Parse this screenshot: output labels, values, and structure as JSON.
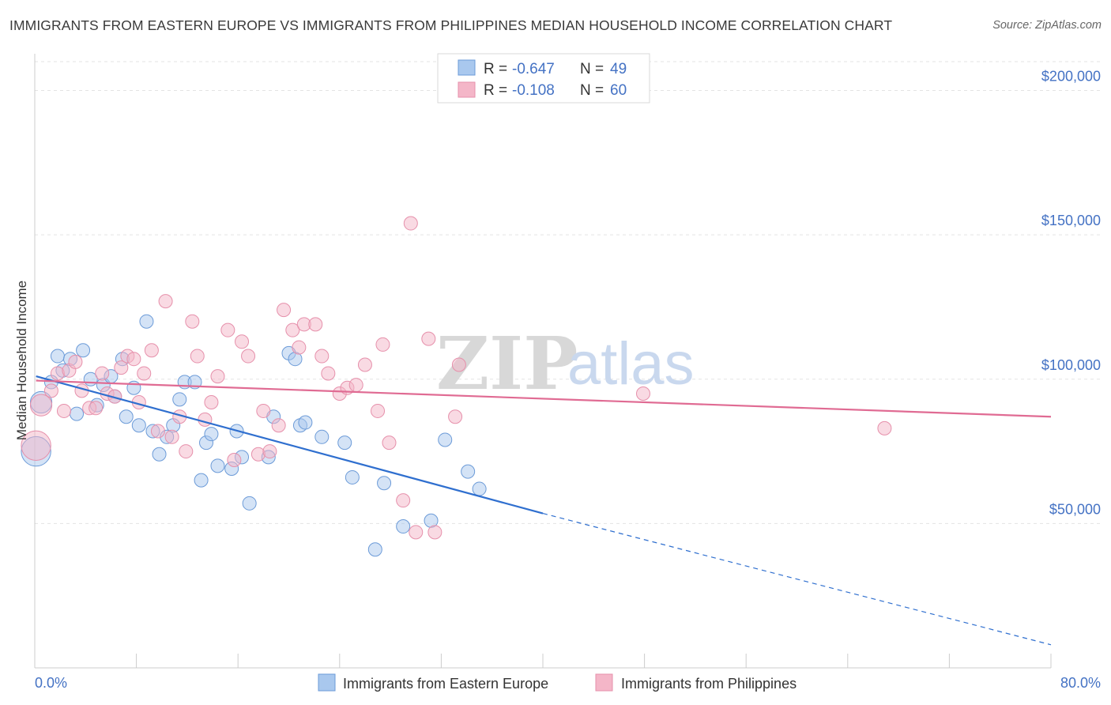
{
  "title": "IMMIGRANTS FROM EASTERN EUROPE VS IMMIGRANTS FROM PHILIPPINES MEDIAN HOUSEHOLD INCOME CORRELATION CHART",
  "source": "Source: ZipAtlas.com",
  "watermark": {
    "zip": "ZIP",
    "atlas": "atlas"
  },
  "legend": {
    "rows": [
      {
        "r_label": "R =",
        "r_value": "-0.647",
        "n_label": "N =",
        "n_value": "49",
        "color": "#a9c8ee"
      },
      {
        "r_label": "R =",
        "r_value": "-0.108",
        "n_label": "N =",
        "n_value": "60",
        "color": "#f4b6c8"
      }
    ]
  },
  "bottom_legend": [
    {
      "label": "Immigrants from Eastern Europe",
      "color": "#a9c8ee"
    },
    {
      "label": "Immigrants from Philippines",
      "color": "#f4b6c8"
    }
  ],
  "chart_data": {
    "type": "scatter",
    "ylabel": "Median Household Income",
    "xlim": [
      0,
      80
    ],
    "ylim": [
      0,
      210000
    ],
    "x_tick_labels": [
      "0.0%",
      "80.0%"
    ],
    "y_ticks": [
      50000,
      100000,
      150000,
      200000
    ],
    "y_tick_labels": [
      "$50,000",
      "$100,000",
      "$150,000",
      "$200,000"
    ],
    "grid": true,
    "series": [
      {
        "name": "Immigrants from Eastern Europe",
        "color": "#a9c8ee",
        "stroke": "#6c9bd8",
        "line_color": "#2f6fcf",
        "trend": {
          "x0": 0.1,
          "y0": 101000,
          "x1": 40,
          "y1": 53500,
          "x_dash_end": 80,
          "y_dash_end": 8000
        },
        "points": [
          [
            0.1,
            75000,
            2.2
          ],
          [
            0.5,
            92000,
            1.6
          ],
          [
            1.3,
            99000,
            1
          ],
          [
            1.8,
            108000,
            1
          ],
          [
            2.2,
            103000,
            1
          ],
          [
            2.8,
            107000,
            1
          ],
          [
            3.3,
            88000,
            1
          ],
          [
            3.8,
            110000,
            1
          ],
          [
            4.4,
            100000,
            1
          ],
          [
            4.9,
            91000,
            1
          ],
          [
            5.4,
            98000,
            1
          ],
          [
            6.0,
            101000,
            1
          ],
          [
            6.3,
            94000,
            1
          ],
          [
            6.9,
            107000,
            1
          ],
          [
            7.2,
            87000,
            1
          ],
          [
            7.8,
            97000,
            1
          ],
          [
            8.2,
            84000,
            1
          ],
          [
            8.8,
            120000,
            1
          ],
          [
            9.3,
            82000,
            1
          ],
          [
            9.8,
            74000,
            1
          ],
          [
            10.4,
            80000,
            1
          ],
          [
            10.9,
            84000,
            1
          ],
          [
            11.4,
            93000,
            1
          ],
          [
            11.8,
            99000,
            1
          ],
          [
            12.6,
            99000,
            1
          ],
          [
            13.1,
            65000,
            1
          ],
          [
            13.5,
            78000,
            1
          ],
          [
            13.9,
            81000,
            1
          ],
          [
            14.4,
            70000,
            1
          ],
          [
            15.5,
            69000,
            1
          ],
          [
            15.9,
            82000,
            1
          ],
          [
            16.3,
            73000,
            1
          ],
          [
            16.9,
            57000,
            1
          ],
          [
            18.4,
            73000,
            1
          ],
          [
            18.8,
            87000,
            1
          ],
          [
            20.0,
            109000,
            1
          ],
          [
            20.5,
            107000,
            1
          ],
          [
            20.9,
            84000,
            1
          ],
          [
            21.3,
            85000,
            1
          ],
          [
            22.6,
            80000,
            1
          ],
          [
            24.4,
            78000,
            1
          ],
          [
            25.0,
            66000,
            1
          ],
          [
            26.8,
            41000,
            1
          ],
          [
            27.5,
            64000,
            1
          ],
          [
            29.0,
            49000,
            1
          ],
          [
            31.2,
            51000,
            1
          ],
          [
            32.3,
            79000,
            1
          ],
          [
            34.1,
            68000,
            1
          ],
          [
            35.0,
            62000,
            1
          ]
        ]
      },
      {
        "name": "Immigrants from Philippines",
        "color": "#f4b6c8",
        "stroke": "#e690ab",
        "line_color": "#e06b93",
        "trend": {
          "x0": 0.1,
          "y0": 99500,
          "x1": 80,
          "y1": 87000
        },
        "points": [
          [
            0.1,
            77000,
            2.2
          ],
          [
            0.5,
            91000,
            1.6
          ],
          [
            1.3,
            96000,
            1
          ],
          [
            1.8,
            102000,
            1
          ],
          [
            2.3,
            89000,
            1
          ],
          [
            2.7,
            103000,
            1
          ],
          [
            3.2,
            106000,
            1
          ],
          [
            3.7,
            96000,
            1
          ],
          [
            4.3,
            90000,
            1
          ],
          [
            4.8,
            90000,
            1
          ],
          [
            5.3,
            102000,
            1
          ],
          [
            5.7,
            95000,
            1
          ],
          [
            6.3,
            94000,
            1
          ],
          [
            6.8,
            104000,
            1
          ],
          [
            7.3,
            108000,
            1
          ],
          [
            7.8,
            107000,
            1
          ],
          [
            8.2,
            92000,
            1
          ],
          [
            8.6,
            102000,
            1
          ],
          [
            9.2,
            110000,
            1
          ],
          [
            9.7,
            82000,
            1
          ],
          [
            10.3,
            127000,
            1
          ],
          [
            10.8,
            80000,
            1
          ],
          [
            11.4,
            87000,
            1
          ],
          [
            11.9,
            75000,
            1
          ],
          [
            12.4,
            120000,
            1
          ],
          [
            12.8,
            108000,
            1
          ],
          [
            13.4,
            86000,
            1
          ],
          [
            13.9,
            92000,
            1
          ],
          [
            14.4,
            101000,
            1
          ],
          [
            15.2,
            117000,
            1
          ],
          [
            15.7,
            72000,
            1
          ],
          [
            16.3,
            113000,
            1
          ],
          [
            16.8,
            108000,
            1
          ],
          [
            17.6,
            74000,
            1
          ],
          [
            18.0,
            89000,
            1
          ],
          [
            18.5,
            75000,
            1
          ],
          [
            19.2,
            84000,
            1
          ],
          [
            19.6,
            124000,
            1
          ],
          [
            20.3,
            117000,
            1
          ],
          [
            20.8,
            111000,
            1
          ],
          [
            21.2,
            119000,
            1
          ],
          [
            22.1,
            119000,
            1
          ],
          [
            22.6,
            108000,
            1
          ],
          [
            23.1,
            102000,
            1
          ],
          [
            24.0,
            95000,
            1
          ],
          [
            24.6,
            97000,
            1
          ],
          [
            25.3,
            98000,
            1
          ],
          [
            26.0,
            105000,
            1
          ],
          [
            27.0,
            89000,
            1
          ],
          [
            27.4,
            112000,
            1
          ],
          [
            27.9,
            78000,
            1
          ],
          [
            29.0,
            58000,
            1
          ],
          [
            29.6,
            154000,
            1
          ],
          [
            30.0,
            47000,
            1
          ],
          [
            31.0,
            114000,
            1
          ],
          [
            31.5,
            47000,
            1
          ],
          [
            33.1,
            87000,
            1
          ],
          [
            33.4,
            105000,
            1
          ],
          [
            47.9,
            95000,
            1
          ],
          [
            66.9,
            83000,
            1
          ]
        ]
      }
    ]
  }
}
